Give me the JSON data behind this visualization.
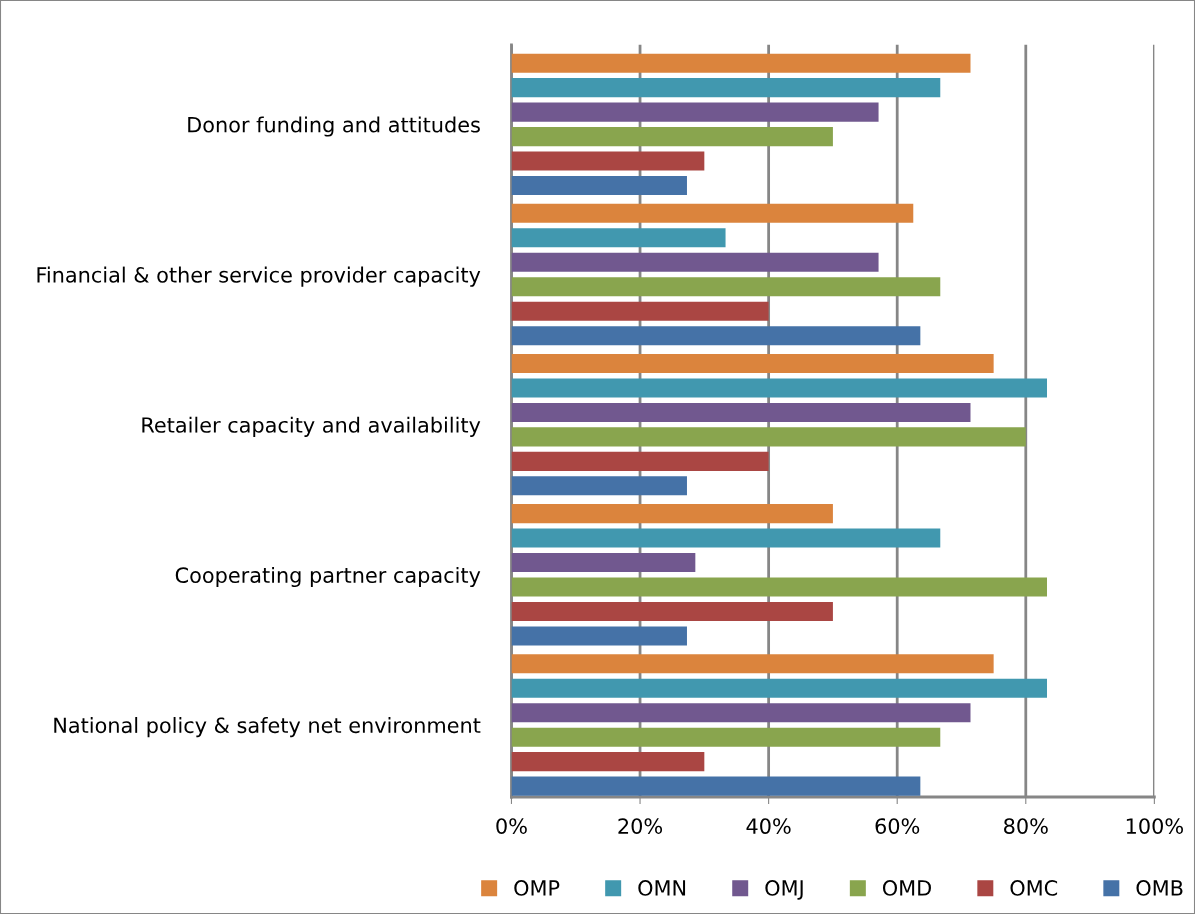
{
  "chart_data": {
    "type": "bar",
    "orientation": "horizontal",
    "categories": [
      "Donor funding and attitudes",
      "Financial & other service provider capacity",
      "Retailer capacity and availability",
      "Cooperating partner capacity",
      "National policy & safety net environment"
    ],
    "series": [
      {
        "name": "OMP",
        "color": "#db843d",
        "values": [
          71.4,
          62.5,
          75,
          50,
          75
        ]
      },
      {
        "name": "OMN",
        "color": "#4198af",
        "values": [
          66.7,
          33.3,
          83.3,
          66.7,
          83.3
        ]
      },
      {
        "name": "OMJ",
        "color": "#71588f",
        "values": [
          57.1,
          57.1,
          71.4,
          28.6,
          71.4
        ]
      },
      {
        "name": "OMD",
        "color": "#89a54e",
        "values": [
          50,
          66.7,
          80,
          83.3,
          66.7
        ]
      },
      {
        "name": "OMC",
        "color": "#aa4643",
        "values": [
          30,
          40,
          40,
          50,
          30
        ]
      },
      {
        "name": "OMB",
        "color": "#4572a7",
        "values": [
          27.3,
          63.6,
          27.3,
          27.3,
          63.6
        ]
      }
    ],
    "xlim": [
      0,
      100
    ],
    "xticks": [
      {
        "value": 0,
        "label": "0%"
      },
      {
        "value": 20,
        "label": "20%"
      },
      {
        "value": 40,
        "label": "40%"
      },
      {
        "value": 60,
        "label": "60%"
      },
      {
        "value": 80,
        "label": "80%"
      },
      {
        "value": 100,
        "label": "100%"
      }
    ],
    "grid": "x",
    "legend": "bottom"
  }
}
